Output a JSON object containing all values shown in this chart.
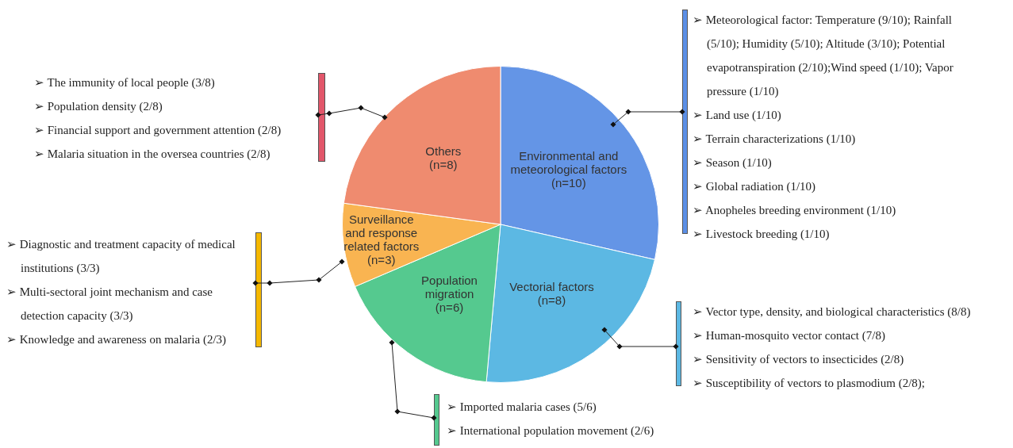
{
  "chart_data": {
    "type": "pie",
    "categories": [
      "Environmental and\nmeteorological factors\n(n=10)",
      "Vectorial factors\n(n=8)",
      "Population\nmigration\n(n=6)",
      "Surveillance\nand response\nrelated factors\n(n=3)",
      "Others\n(n=8)"
    ],
    "values": [
      10,
      8,
      6,
      3,
      8
    ],
    "colors": [
      "#6495e6",
      "#5cb8e3",
      "#55c98f",
      "#f9b451",
      "#ef8b6f"
    ],
    "legend": false,
    "annotations": [
      "➢ Meteorological factor: Temperature (9/10); Rainfall (5/10); Humidity (5/10); Altitude (3/10); Potential evapotranspiration (2/10);Wind speed (1/10); Vapor pressure (1/10)\n➢ Land use (1/10)\n➢ Terrain characterizations (1/10)\n➢ Season (1/10)\n➢ Global radiation (1/10)\n➢ Anopheles breeding environment (1/10)\n➢  Livestock breeding (1/10)",
      "➢ Vector type, density, and biological characteristics (8/8)\n➢ Human-mosquito vector contact (7/8)\n➢ Sensitivity of vectors to insecticides (2/8)\n➢ Susceptibility of vectors to plasmodium (2/8);",
      "➢ Imported malaria cases (5/6)\n➢ International population movement (2/6)",
      "➢ Diagnostic and treatment capacity of medical institutions  (3/3)\n➢ Multi-sectoral joint mechanism and case detection capacity (3/3)\n➢ Knowledge and awareness on malaria (2/3)",
      "➢ The immunity of local people (3/8)\n➢ Population density (2/8)\n➢ Financial support and government attention (2/8)\n➢ Malaria situation in the oversea countries (2/8)"
    ]
  }
}
